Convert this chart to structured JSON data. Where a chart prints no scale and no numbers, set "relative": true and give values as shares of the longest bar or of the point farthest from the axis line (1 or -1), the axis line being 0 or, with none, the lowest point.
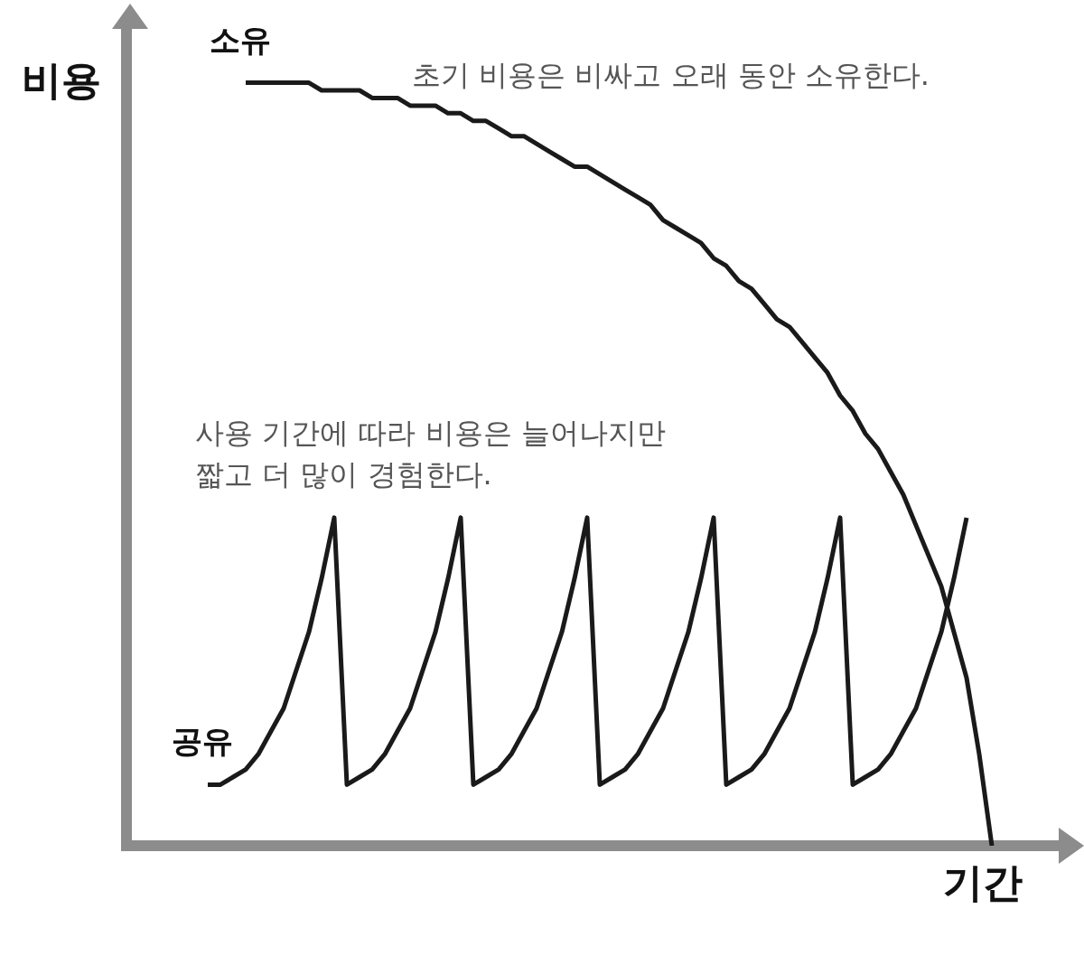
{
  "chart_data": {
    "type": "line",
    "relative": true,
    "xlabel": "기간",
    "ylabel": "비용",
    "categories": [
      null,
      null,
      null,
      null,
      null,
      null,
      null,
      null,
      null,
      null,
      null,
      null,
      null,
      null,
      null,
      null,
      null,
      null,
      null,
      null,
      null,
      null,
      null,
      null,
      null,
      null,
      null,
      null,
      null,
      null,
      null,
      null,
      null,
      null,
      null,
      null,
      null,
      null,
      null,
      null,
      null,
      null,
      null,
      null,
      null,
      null,
      null,
      null,
      null,
      null,
      null,
      null,
      null,
      null,
      null,
      null,
      null,
      null,
      null,
      null,
      null,
      null,
      null
    ],
    "series": [
      {
        "name": "소유",
        "color": "#1a1a1a",
        "values": [
          null,
          null,
          null,
          1.0,
          1.0,
          1.0,
          1.0,
          1.0,
          1.0,
          0.99,
          0.99,
          0.99,
          0.99,
          0.98,
          0.98,
          0.98,
          0.97,
          0.97,
          0.97,
          0.96,
          0.96,
          0.95,
          0.95,
          0.94,
          0.93,
          0.93,
          0.92,
          0.91,
          0.9,
          0.89,
          0.89,
          0.88,
          0.87,
          0.86,
          0.85,
          0.84,
          0.82,
          0.81,
          0.8,
          0.79,
          0.77,
          0.76,
          0.74,
          0.73,
          0.71,
          0.69,
          0.68,
          0.66,
          0.64,
          0.62,
          0.59,
          0.57,
          0.54,
          0.52,
          0.49,
          0.46,
          0.42,
          0.38,
          0.34,
          0.28,
          0.22,
          0.12,
          0.0
        ]
      },
      {
        "name": "공유",
        "color": "#1a1a1a",
        "values": [
          0.08,
          0.08,
          0.09,
          0.1,
          0.12,
          0.15,
          0.18,
          0.23,
          0.28,
          0.35,
          0.43,
          0.08,
          0.09,
          0.1,
          0.12,
          0.15,
          0.18,
          0.23,
          0.28,
          0.35,
          0.43,
          0.08,
          0.09,
          0.1,
          0.12,
          0.15,
          0.18,
          0.23,
          0.28,
          0.35,
          0.43,
          0.08,
          0.09,
          0.1,
          0.12,
          0.15,
          0.18,
          0.23,
          0.28,
          0.35,
          0.43,
          0.08,
          0.09,
          0.1,
          0.12,
          0.15,
          0.18,
          0.23,
          0.28,
          0.35,
          0.43,
          0.08,
          0.09,
          0.1,
          0.12,
          0.15,
          0.18,
          0.23,
          0.28,
          0.35,
          0.43,
          null,
          null
        ]
      }
    ],
    "annotations": [
      "초기 비용은 비싸고 오래 동안 소유한다.",
      "사용 기간에 따라 비용은 늘어나지만\n짧고 더 많이 경험한다."
    ]
  }
}
